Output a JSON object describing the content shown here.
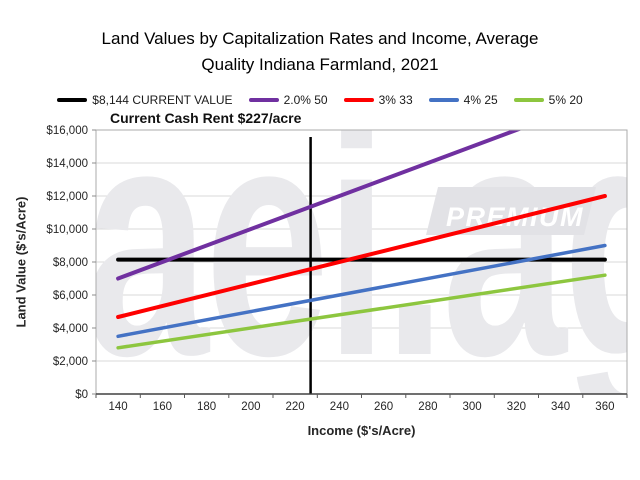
{
  "title": {
    "line1": "Land Values by Capitalization Rates and Income, Average",
    "line2": "Quality Indiana Farmland, 2021"
  },
  "annotation": "Current Cash Rent $227/acre",
  "watermark": {
    "text": "aei.ag",
    "badge": "PREMIUM"
  },
  "chart_data": {
    "type": "line",
    "title": "Land Values by Capitalization Rates and Income, Average Quality Indiana Farmland, 2021",
    "subtitle": "Current Cash Rent $227/acre",
    "xlabel": "Income ($'s/Acre)",
    "ylabel": "Land Value ($'s/Acre)",
    "xlim": [
      130,
      370
    ],
    "ylim": [
      0,
      16000
    ],
    "x_ticks": [
      140,
      160,
      180,
      200,
      220,
      240,
      260,
      280,
      300,
      320,
      340,
      360
    ],
    "y_ticks": [
      0,
      2000,
      4000,
      6000,
      8000,
      10000,
      12000,
      14000,
      16000
    ],
    "y_tick_labels": [
      "$0",
      "$2,000",
      "$4,000",
      "$6,000",
      "$8,000",
      "$10,000",
      "$12,000",
      "$14,000",
      "$16,000"
    ],
    "grid": true,
    "legend_position": "top",
    "series": [
      {
        "name": "$8,144 CURRENT VALUE",
        "color": "#000000",
        "x": [
          140,
          360
        ],
        "y": [
          8144,
          8144
        ]
      },
      {
        "name": "2.0% 50",
        "color": "#7030A0",
        "x": [
          140,
          360
        ],
        "y": [
          7000,
          18000
        ]
      },
      {
        "name": "3% 33",
        "color": "#FE0000",
        "x": [
          140,
          360
        ],
        "y": [
          4667,
          12000
        ]
      },
      {
        "name": "4% 25",
        "color": "#4472C4",
        "x": [
          140,
          360
        ],
        "y": [
          3500,
          9000
        ]
      },
      {
        "name": "5% 20",
        "color": "#8DC63F",
        "x": [
          140,
          360
        ],
        "y": [
          2800,
          7200
        ]
      }
    ],
    "reference_vline": {
      "x": 227,
      "label": "Current Cash Rent $227/acre",
      "color": "#000000"
    },
    "current_value": 8144,
    "current_cash_rent": 227
  }
}
